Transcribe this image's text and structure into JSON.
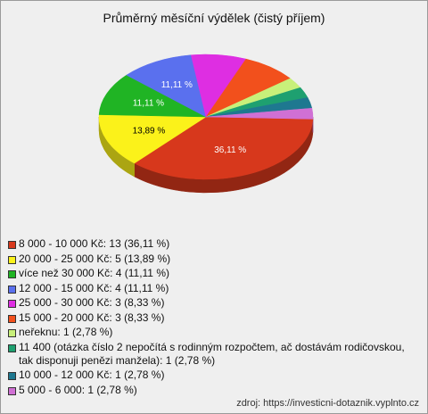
{
  "chart_data": {
    "type": "pie",
    "title": "Průměrný měsíční výdělek (čistý příjem)",
    "categories": [
      "8 000 - 10 000 Kč: 13 (36,11 %)",
      "20 000 - 25 000 Kč: 5 (13,89 %)",
      "více než 30 000 Kč: 4 (11,11 %)",
      "12 000 - 15 000 Kč: 4 (11,11 %)",
      "25 000 - 30 000 Kč: 3 (8,33 %)",
      "15 000 - 20 000 Kč: 3 (8,33 %)",
      "neřeknu: 1 (2,78 %)",
      "11 400 (otázka číslo 2 nepočítá s rodinným rozpočtem, ač dostávám rodičovskou, tak disponuji penězi manžela): 1 (2,78 %)",
      "10 000 - 12 000 Kč: 1 (2,78 %)",
      "5 000 - 6 000: 1 (2,78 %)"
    ],
    "values": [
      36.11,
      13.89,
      11.11,
      11.11,
      8.33,
      8.33,
      2.78,
      2.78,
      2.78,
      2.78
    ],
    "value_labels": [
      "36,11 %",
      "13,89 %",
      "11,11 %",
      "11,11 %",
      null,
      null,
      null,
      null,
      null,
      null
    ],
    "colors": [
      "#d7381c",
      "#fbf21a",
      "#20b424",
      "#5a70ee",
      "#de2ee2",
      "#f2501c",
      "#c8f07a",
      "#1ea070",
      "#1e7890",
      "#d070d4"
    ],
    "source": "zdroj: https://investicni-dotaznik.vyplnto.cz"
  }
}
